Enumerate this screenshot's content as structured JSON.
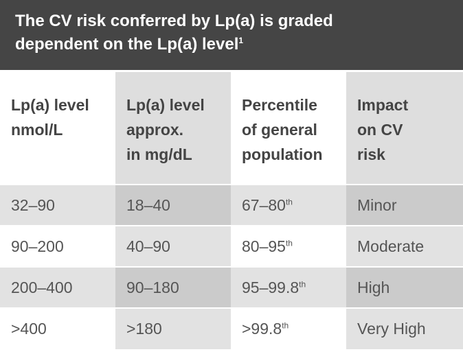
{
  "header": {
    "title_line1": "The CV risk conferred by Lp(a) is graded",
    "title_line2": "dependent on the Lp(a) level",
    "title_footnote": "1"
  },
  "table": {
    "columns": [
      {
        "lines": [
          "Lp(a) level",
          "nmol/L"
        ]
      },
      {
        "lines": [
          "Lp(a) level",
          "approx.",
          "in mg/dL"
        ]
      },
      {
        "lines": [
          "Percentile",
          "of general",
          "population"
        ]
      },
      {
        "lines": [
          "Impact",
          "on CV",
          "risk"
        ]
      }
    ],
    "rows": [
      {
        "nmol": "32–90",
        "mg": "18–40",
        "percentile": "67–80",
        "pct_suffix": "th",
        "impact": "Minor"
      },
      {
        "nmol": "90–200",
        "mg": "40–90",
        "percentile": "80–95",
        "pct_suffix": "th",
        "impact": "Moderate"
      },
      {
        "nmol": "200–400",
        "mg": "90–180",
        "percentile": "95–99.8",
        "pct_suffix": "th",
        "impact": "High"
      },
      {
        "nmol": ">400",
        "mg": ">180",
        "percentile": ">99.8",
        "pct_suffix": "th",
        "impact": "Very High"
      }
    ]
  }
}
